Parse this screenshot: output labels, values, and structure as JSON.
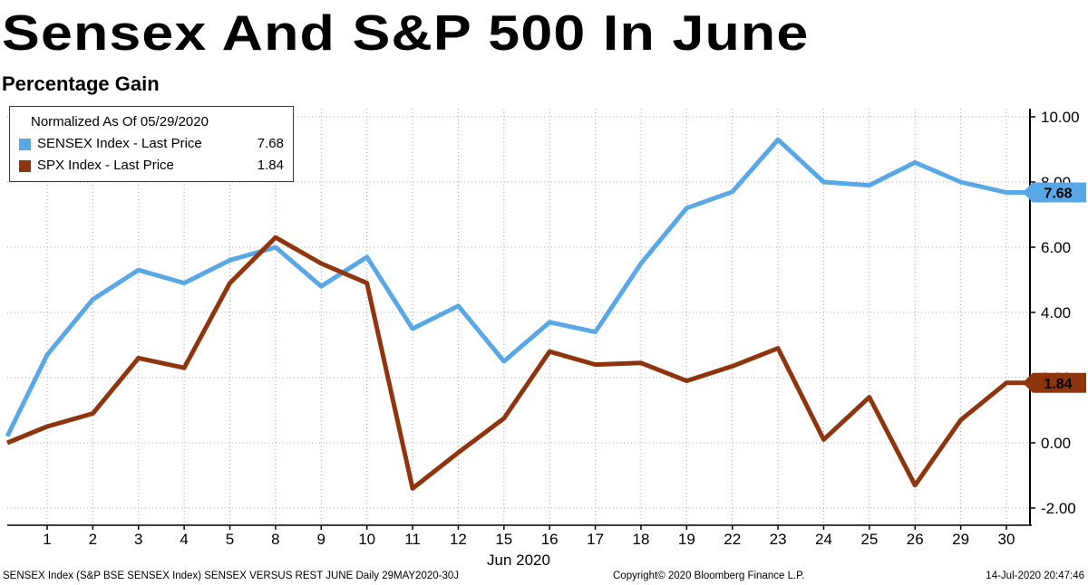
{
  "title": "Sensex And S&P 500 In June",
  "subtitle": "Percentage Gain",
  "legend": {
    "normalized_label": "Normalized As Of 05/29/2020",
    "items": [
      {
        "label": "SENSEX Index - Last Price",
        "value": "7.68",
        "color": "#58a8e8"
      },
      {
        "label": "SPX Index - Last Price",
        "value": "1.84",
        "color": "#8e350e"
      }
    ]
  },
  "chart_data": {
    "type": "line",
    "title": "Sensex And S&P 500 In June",
    "subtitle": "Percentage Gain",
    "xlabel": "Jun 2020",
    "x_tick_labels": [
      "1",
      "2",
      "3",
      "4",
      "5",
      "8",
      "9",
      "10",
      "11",
      "12",
      "15",
      "16",
      "17",
      "18",
      "19",
      "22",
      "23",
      "24",
      "25",
      "26",
      "29",
      "30"
    ],
    "x_includes_baseline_point": true,
    "y_ticks": [
      10,
      8,
      6,
      4,
      2,
      0,
      -2
    ],
    "ylim": [
      -2.5,
      10.3
    ],
    "grid": "dotted",
    "legend_position": "top-left",
    "series": [
      {
        "id": "sensex",
        "name": "SENSEX Index",
        "color": "#58a8e8",
        "last_label": "7.68",
        "badge_text_color": "#000000",
        "values": [
          0.2,
          2.7,
          4.4,
          5.3,
          4.9,
          5.6,
          6.0,
          4.8,
          5.7,
          3.5,
          4.2,
          2.5,
          3.7,
          3.4,
          5.5,
          7.2,
          7.7,
          9.3,
          8.0,
          7.9,
          8.6,
          8.0,
          7.68
        ]
      },
      {
        "id": "spx",
        "name": "SPX Index",
        "color": "#8e350e",
        "last_label": "1.84",
        "badge_text_color": "#ffffff",
        "values": [
          0.0,
          0.5,
          0.9,
          2.6,
          2.3,
          4.9,
          6.3,
          5.5,
          4.9,
          -1.4,
          -0.3,
          0.75,
          2.8,
          2.4,
          2.45,
          1.9,
          2.35,
          2.9,
          0.1,
          1.4,
          -1.3,
          0.7,
          1.84
        ]
      }
    ]
  },
  "footer": {
    "left": "SENSEX Index (S&P BSE SENSEX Index) SENSEX VERSUS REST JUNE  Daily 29MAY2020-30J",
    "center": "Copyright© 2020 Bloomberg Finance L.P.",
    "right": "14-Jul-2020 20:47:46"
  }
}
